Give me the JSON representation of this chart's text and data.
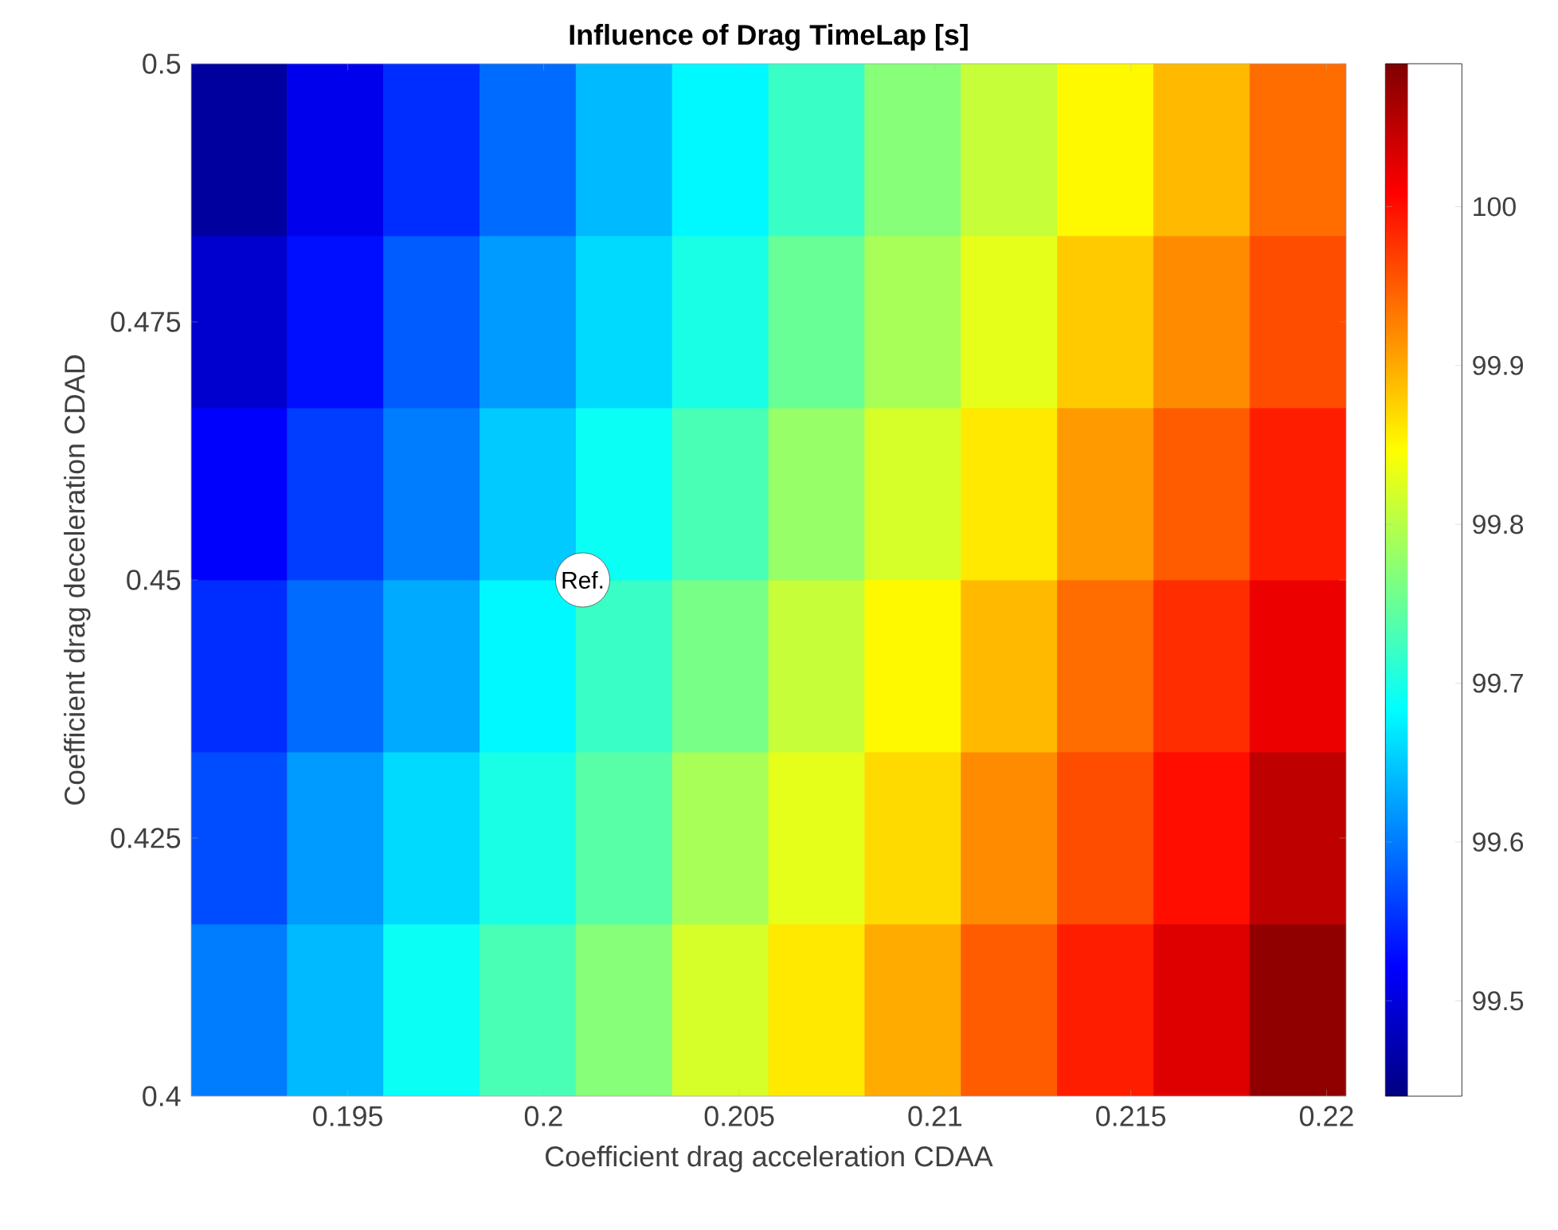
{
  "chart_data": {
    "type": "heatmap",
    "title": "Influence of Drag TimeLap [s]",
    "xlabel": "Coefficient drag acceleration CDAA",
    "ylabel": "Coefficient drag deceleration CDAD",
    "cells": [
      [
        99.46,
        99.51,
        99.55,
        99.59,
        99.64,
        99.68,
        99.72,
        99.77,
        99.81,
        99.85,
        99.89,
        99.94
      ],
      [
        99.49,
        99.53,
        99.58,
        99.62,
        99.66,
        99.7,
        99.75,
        99.79,
        99.83,
        99.88,
        99.92,
        99.96
      ],
      [
        99.52,
        99.56,
        99.6,
        99.65,
        99.69,
        99.73,
        99.78,
        99.82,
        99.86,
        99.91,
        99.95,
        99.99
      ],
      [
        99.55,
        99.59,
        99.63,
        99.68,
        99.72,
        99.76,
        99.81,
        99.85,
        99.89,
        99.94,
        99.98,
        100.02
      ],
      [
        99.57,
        99.62,
        99.66,
        99.7,
        99.74,
        99.79,
        99.83,
        99.87,
        99.92,
        99.96,
        100.0,
        100.05
      ],
      [
        99.6,
        99.64,
        99.69,
        99.73,
        99.77,
        99.82,
        99.86,
        99.9,
        99.95,
        99.99,
        100.03,
        100.08
      ]
    ],
    "xlim": [
      0.191,
      0.2205
    ],
    "ylim": [
      0.4,
      0.5
    ],
    "xticks": [
      0.195,
      0.2,
      0.205,
      0.21,
      0.215,
      0.22
    ],
    "yticks": [
      0.4,
      0.425,
      0.45,
      0.475,
      0.5
    ],
    "clim": [
      99.44,
      100.09
    ],
    "cticks": [
      99.5,
      99.6,
      99.7,
      99.8,
      99.9,
      100
    ],
    "annotations": [
      {
        "text": "Ref.",
        "x": 0.201,
        "y": 0.45
      }
    ]
  }
}
